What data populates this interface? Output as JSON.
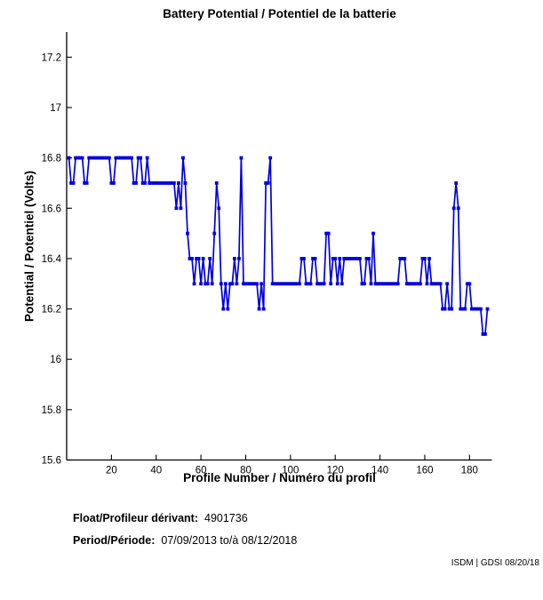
{
  "title": "Battery Potential / Potentiel de la batterie",
  "chart_data": {
    "type": "line",
    "title": "Battery Potential / Potentiel de la batterie",
    "xlabel": "Profile Number / Numéro du profil",
    "ylabel": "Potential / Potentiel (Volts)",
    "xlim": [
      0,
      190
    ],
    "ylim": [
      15.6,
      17.3
    ],
    "x_ticks": [
      20,
      40,
      60,
      80,
      100,
      120,
      140,
      160,
      180
    ],
    "x_tick_labels": [
      "20",
      "40",
      "60",
      "80",
      "100",
      "120",
      "140",
      "160",
      "180"
    ],
    "y_ticks": [
      15.6,
      15.8,
      16.0,
      16.2,
      16.4,
      16.6,
      16.8,
      17.0,
      17.2
    ],
    "y_tick_labels": [
      "15.6",
      "15.8",
      "16",
      "16.2",
      "16.4",
      "16.6",
      "16.8",
      "17",
      "17.2"
    ],
    "grid": false,
    "legend": "none",
    "line_color": "#0000dd",
    "marker": "dot",
    "x_start": 1,
    "values": [
      16.8,
      16.7,
      16.7,
      16.8,
      16.8,
      16.8,
      16.8,
      16.7,
      16.7,
      16.8,
      16.8,
      16.8,
      16.8,
      16.8,
      16.8,
      16.8,
      16.8,
      16.8,
      16.8,
      16.7,
      16.7,
      16.8,
      16.8,
      16.8,
      16.8,
      16.8,
      16.8,
      16.8,
      16.8,
      16.7,
      16.7,
      16.8,
      16.8,
      16.7,
      16.7,
      16.8,
      16.7,
      16.7,
      16.7,
      16.7,
      16.7,
      16.7,
      16.7,
      16.7,
      16.7,
      16.7,
      16.7,
      16.7,
      16.6,
      16.7,
      16.6,
      16.8,
      16.7,
      16.5,
      16.4,
      16.4,
      16.3,
      16.4,
      16.4,
      16.3,
      16.4,
      16.3,
      16.3,
      16.4,
      16.3,
      16.5,
      16.7,
      16.6,
      16.3,
      16.2,
      16.3,
      16.2,
      16.3,
      16.3,
      16.4,
      16.3,
      16.4,
      16.8,
      16.3,
      16.3,
      16.3,
      16.3,
      16.3,
      16.3,
      16.3,
      16.2,
      16.3,
      16.2,
      16.7,
      16.7,
      16.8,
      16.3,
      16.3,
      16.3,
      16.3,
      16.3,
      16.3,
      16.3,
      16.3,
      16.3,
      16.3,
      16.3,
      16.3,
      16.3,
      16.4,
      16.4,
      16.3,
      16.3,
      16.3,
      16.4,
      16.4,
      16.3,
      16.3,
      16.3,
      16.3,
      16.5,
      16.5,
      16.3,
      16.4,
      16.4,
      16.3,
      16.4,
      16.3,
      16.4,
      16.4,
      16.4,
      16.4,
      16.4,
      16.4,
      16.4,
      16.4,
      16.3,
      16.3,
      16.4,
      16.4,
      16.3,
      16.5,
      16.3,
      16.3,
      16.3,
      16.3,
      16.3,
      16.3,
      16.3,
      16.3,
      16.3,
      16.3,
      16.3,
      16.4,
      16.4,
      16.4,
      16.3,
      16.3,
      16.3,
      16.3,
      16.3,
      16.3,
      16.3,
      16.4,
      16.4,
      16.3,
      16.4,
      16.3,
      16.3,
      16.3,
      16.3,
      16.3,
      16.2,
      16.2,
      16.3,
      16.2,
      16.2,
      16.6,
      16.7,
      16.6,
      16.2,
      16.2,
      16.2,
      16.3,
      16.3,
      16.2,
      16.2,
      16.2,
      16.2,
      16.2,
      16.1,
      16.1,
      16.2
    ]
  },
  "info": {
    "float_label": "Float/Profileur dérivant:",
    "float_value": "4901736",
    "period_label": "Period/Période:",
    "period_value": "07/09/2013 to/à  08/12/2018"
  },
  "footer": {
    "credit": "ISDM | GDSI 08/20/18"
  }
}
